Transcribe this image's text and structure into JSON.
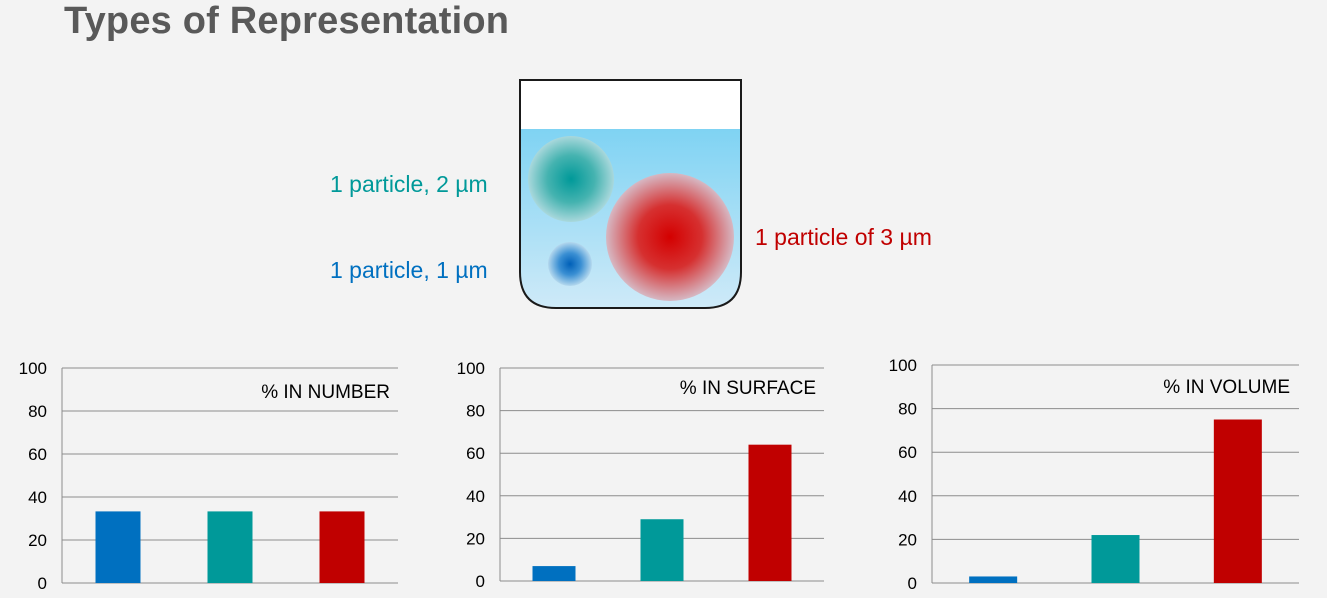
{
  "title": "Types of Representation",
  "beaker": {
    "labels": {
      "teal": "1 particle, 2 µm",
      "blue": "1 particle, 1 µm",
      "red": "1 particle of 3 µm"
    }
  },
  "colors": {
    "blue": "#0070c0",
    "teal": "#009999",
    "red": "#c00000",
    "grid": "#8c8c8c",
    "text": "#000000"
  },
  "chart_data": [
    {
      "type": "bar",
      "title": "% IN NUMBER",
      "categories": [
        "",
        "",
        ""
      ],
      "values": [
        33.3,
        33.3,
        33.3
      ],
      "bar_colors": [
        "#0070c0",
        "#009999",
        "#c00000"
      ],
      "ylim": [
        0,
        100
      ],
      "yticks": [
        0,
        20,
        40,
        60,
        80,
        100
      ],
      "grid": true
    },
    {
      "type": "bar",
      "title": "% IN SURFACE",
      "categories": [
        "",
        "",
        ""
      ],
      "values": [
        7,
        29,
        64
      ],
      "bar_colors": [
        "#0070c0",
        "#009999",
        "#c00000"
      ],
      "ylim": [
        0,
        100
      ],
      "yticks": [
        0,
        20,
        40,
        60,
        80,
        100
      ],
      "grid": true
    },
    {
      "type": "bar",
      "title": "% IN VOLUME",
      "categories": [
        "",
        "",
        ""
      ],
      "values": [
        3,
        22,
        75
      ],
      "bar_colors": [
        "#0070c0",
        "#009999",
        "#c00000"
      ],
      "ylim": [
        0,
        100
      ],
      "yticks": [
        0,
        20,
        40,
        60,
        80,
        100
      ],
      "grid": true
    }
  ]
}
